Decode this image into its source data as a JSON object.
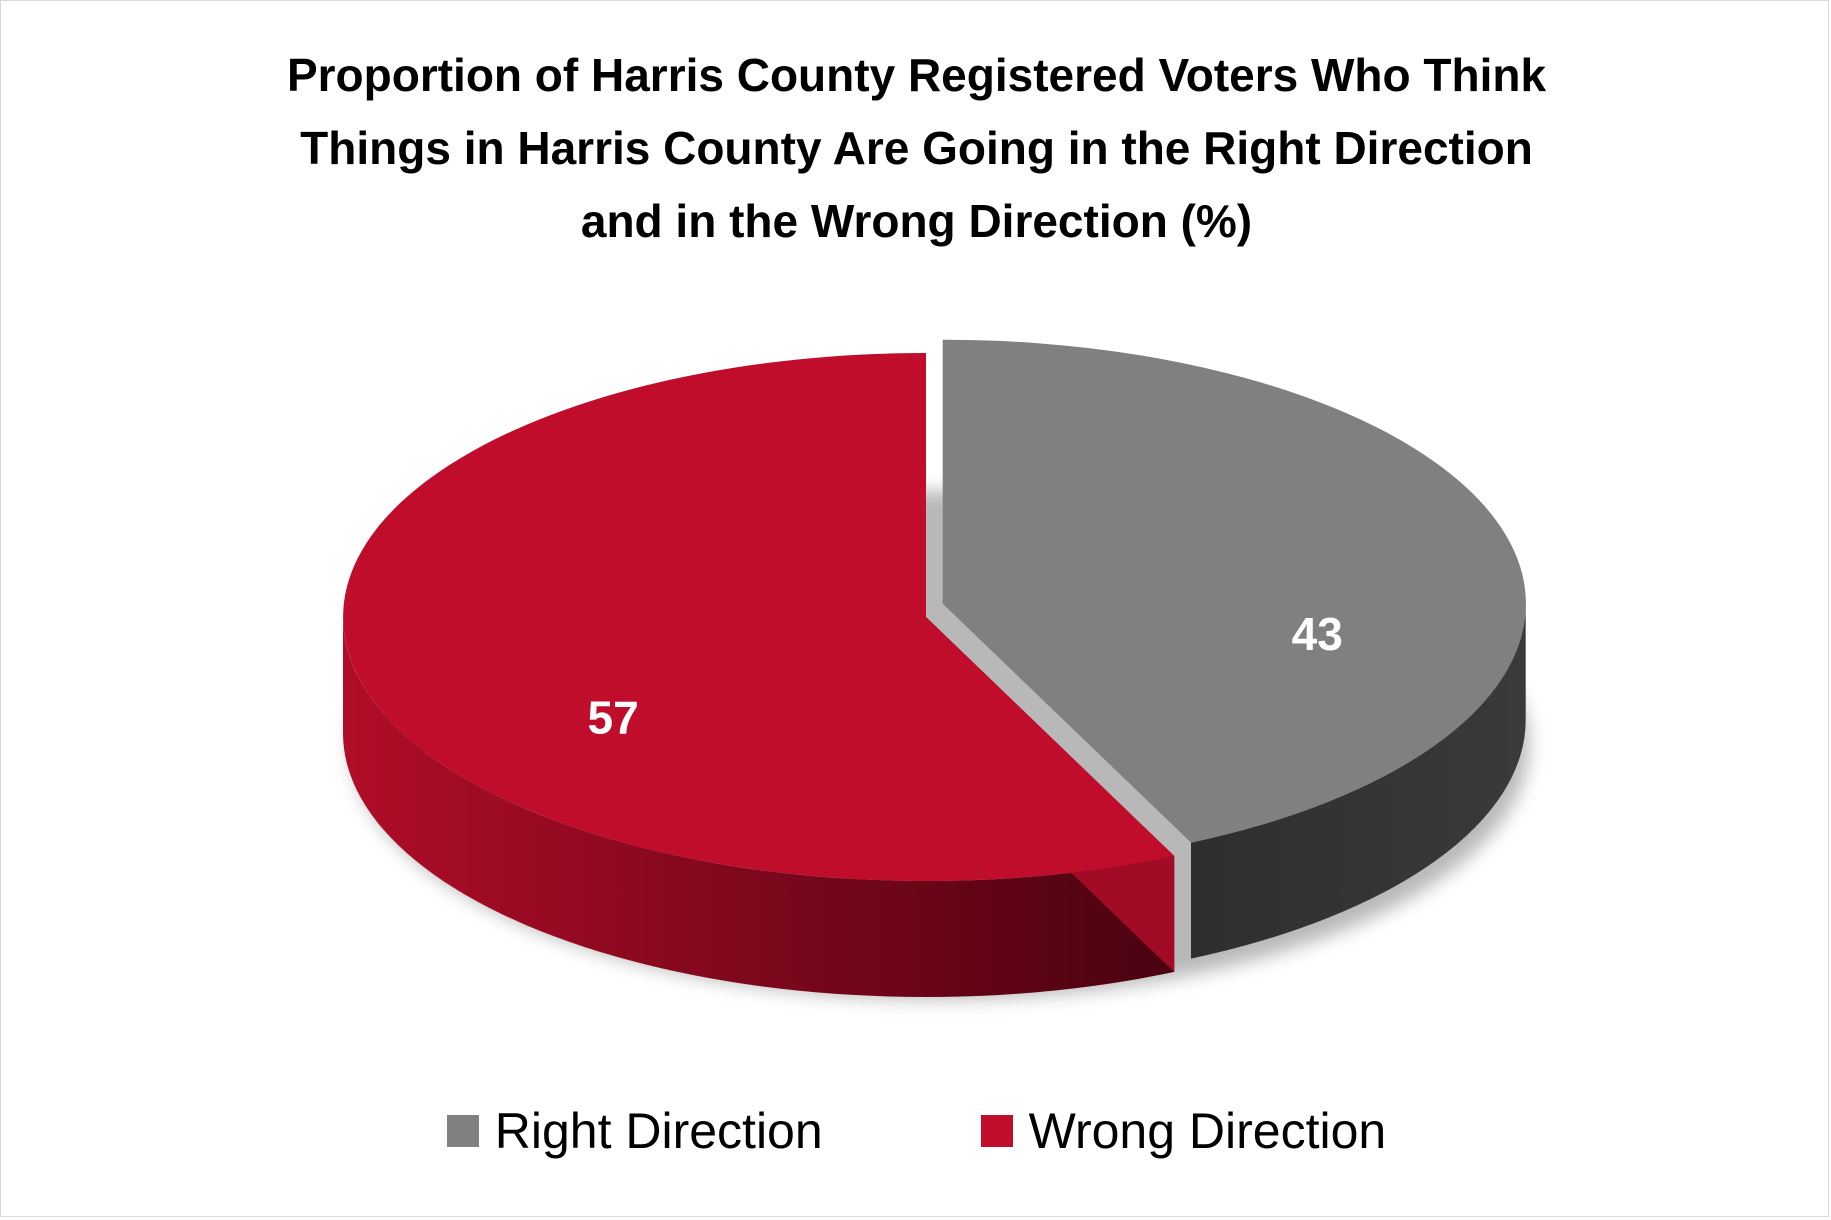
{
  "chart_data": {
    "type": "pie",
    "title_lines": [
      "Proportion of Harris County Registered Voters Who Think",
      "Things in Harris County Are Going in the Right Direction",
      "and in the Wrong Direction (%)"
    ],
    "categories": [
      "Right Direction",
      "Wrong Direction"
    ],
    "values": [
      43,
      57
    ],
    "data_labels": [
      "43",
      "57"
    ],
    "colors": [
      "#808080",
      "#c00d2b"
    ],
    "side_colors": [
      "#363636",
      "#8e0a20"
    ],
    "three_d": true,
    "legend_position": "bottom"
  }
}
